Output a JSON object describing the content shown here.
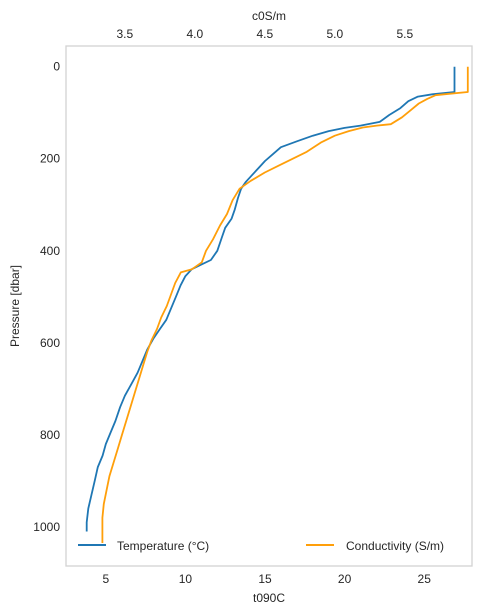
{
  "chart_data": {
    "type": "line",
    "x_bottom_label": "t090C",
    "x_top_label": "c0S/m",
    "y_label": "Pressure [dbar]",
    "y_inverted": true,
    "ylim": [
      1085,
      -45
    ],
    "x_bottom_lim": [
      2.5,
      28.0
    ],
    "x_top_lim": [
      3.08,
      5.98
    ],
    "x_bottom_ticks": [
      5,
      10,
      15,
      20,
      25
    ],
    "x_top_ticks": [
      3.5,
      4.0,
      4.5,
      5.0,
      5.5
    ],
    "y_ticks": [
      0,
      200,
      400,
      600,
      800,
      1000
    ],
    "grid": false,
    "legend_placement": "bottom",
    "series": [
      {
        "name": "Temperature (°C)",
        "axis": "bottom",
        "color": "#1f77b4",
        "points": [
          [
            26.9,
            0
          ],
          [
            26.9,
            10
          ],
          [
            26.9,
            30
          ],
          [
            26.9,
            55
          ],
          [
            25.5,
            60
          ],
          [
            24.6,
            65
          ],
          [
            24.0,
            75
          ],
          [
            23.5,
            90
          ],
          [
            22.8,
            105
          ],
          [
            22.2,
            120
          ],
          [
            21.0,
            128
          ],
          [
            20.0,
            133
          ],
          [
            19.0,
            140
          ],
          [
            18.0,
            150
          ],
          [
            17.0,
            162
          ],
          [
            16.0,
            175
          ],
          [
            15.5,
            190
          ],
          [
            15.0,
            205
          ],
          [
            14.6,
            220
          ],
          [
            14.2,
            235
          ],
          [
            13.8,
            250
          ],
          [
            13.5,
            265
          ],
          [
            13.3,
            285
          ],
          [
            13.1,
            310
          ],
          [
            12.9,
            330
          ],
          [
            12.5,
            350
          ],
          [
            12.3,
            370
          ],
          [
            12.0,
            400
          ],
          [
            11.6,
            420
          ],
          [
            11.0,
            430
          ],
          [
            10.4,
            440
          ],
          [
            10.0,
            455
          ],
          [
            9.7,
            475
          ],
          [
            9.4,
            500
          ],
          [
            9.1,
            525
          ],
          [
            8.8,
            550
          ],
          [
            8.4,
            570
          ],
          [
            8.0,
            590
          ],
          [
            7.6,
            615
          ],
          [
            7.3,
            640
          ],
          [
            7.0,
            665
          ],
          [
            6.6,
            690
          ],
          [
            6.2,
            715
          ],
          [
            5.9,
            740
          ],
          [
            5.6,
            770
          ],
          [
            5.3,
            795
          ],
          [
            5.0,
            820
          ],
          [
            4.8,
            845
          ],
          [
            4.5,
            870
          ],
          [
            4.3,
            900
          ],
          [
            4.1,
            930
          ],
          [
            3.9,
            960
          ],
          [
            3.8,
            990
          ],
          [
            3.8,
            1010
          ]
        ]
      },
      {
        "name": "Conductivity (S/m)",
        "axis": "top",
        "color": "#ff9f0a",
        "points": [
          [
            5.95,
            0
          ],
          [
            5.95,
            10
          ],
          [
            5.95,
            30
          ],
          [
            5.95,
            55
          ],
          [
            5.78,
            60
          ],
          [
            5.72,
            62
          ],
          [
            5.66,
            70
          ],
          [
            5.6,
            80
          ],
          [
            5.54,
            95
          ],
          [
            5.48,
            110
          ],
          [
            5.4,
            125
          ],
          [
            5.3,
            128
          ],
          [
            5.2,
            132
          ],
          [
            5.1,
            140
          ],
          [
            5.0,
            150
          ],
          [
            4.9,
            165
          ],
          [
            4.8,
            185
          ],
          [
            4.7,
            200
          ],
          [
            4.6,
            215
          ],
          [
            4.5,
            230
          ],
          [
            4.4,
            248
          ],
          [
            4.32,
            265
          ],
          [
            4.27,
            290
          ],
          [
            4.23,
            320
          ],
          [
            4.18,
            345
          ],
          [
            4.13,
            375
          ],
          [
            4.08,
            400
          ],
          [
            4.05,
            425
          ],
          [
            3.98,
            440
          ],
          [
            3.9,
            447
          ],
          [
            3.86,
            470
          ],
          [
            3.83,
            495
          ],
          [
            3.8,
            520
          ],
          [
            3.76,
            545
          ],
          [
            3.73,
            570
          ],
          [
            3.69,
            595
          ],
          [
            3.66,
            620
          ],
          [
            3.63,
            650
          ],
          [
            3.6,
            680
          ],
          [
            3.57,
            710
          ],
          [
            3.54,
            740
          ],
          [
            3.51,
            770
          ],
          [
            3.48,
            800
          ],
          [
            3.45,
            830
          ],
          [
            3.42,
            860
          ],
          [
            3.39,
            890
          ],
          [
            3.37,
            920
          ],
          [
            3.35,
            950
          ],
          [
            3.34,
            980
          ],
          [
            3.34,
            1035
          ]
        ]
      }
    ]
  }
}
